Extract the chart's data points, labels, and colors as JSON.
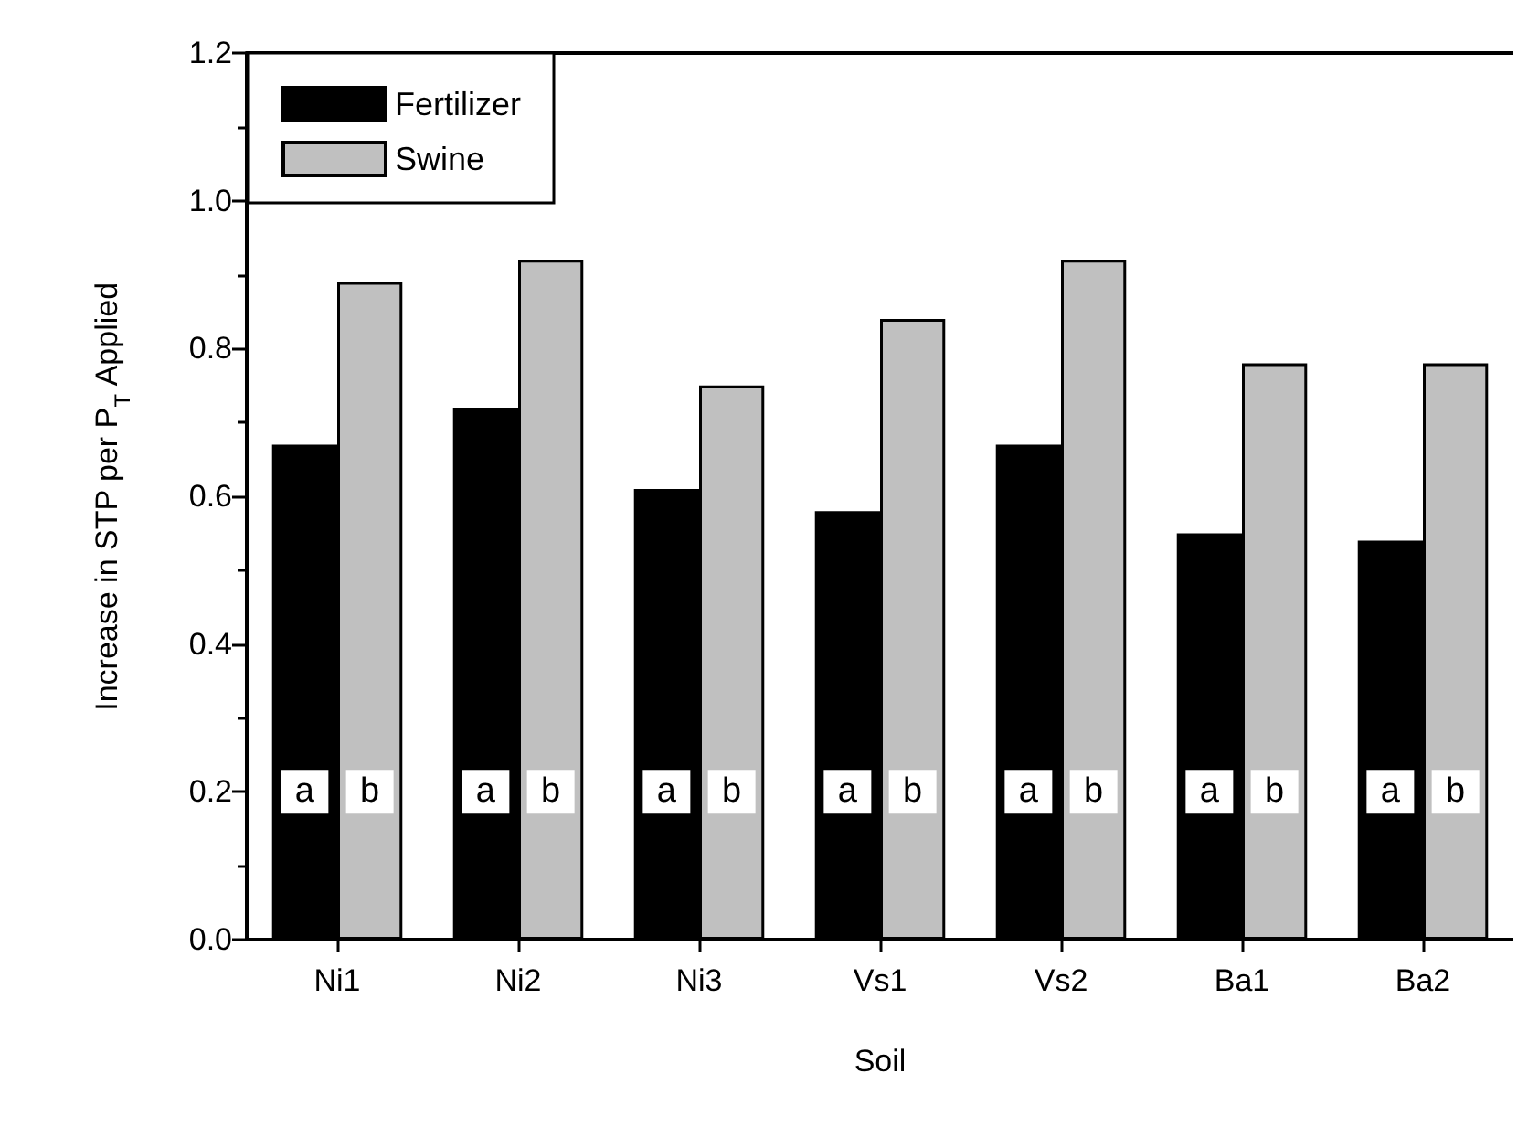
{
  "chart_data": {
    "type": "bar",
    "xlabel": "Soil",
    "ylabel": "Increase in STP per P$_{T}$ Applied",
    "categories": [
      "Ni1",
      "Ni2",
      "Ni3",
      "Vs1",
      "Vs2",
      "Ba1",
      "Ba2"
    ],
    "series": [
      {
        "name": "Fertilizer",
        "color": "#000000",
        "values": [
          0.67,
          0.72,
          0.61,
          0.58,
          0.67,
          0.55,
          0.54
        ]
      },
      {
        "name": "Swine",
        "color": "#c0c0c0",
        "values": [
          0.89,
          0.92,
          0.75,
          0.84,
          0.92,
          0.78,
          0.78
        ]
      }
    ],
    "ylim": [
      0,
      1.2
    ],
    "yticks": [
      {
        "value": 0,
        "label": "0.0"
      },
      {
        "value": 0.2,
        "label": "0.2"
      },
      {
        "value": 0.4,
        "label": "0.4"
      },
      {
        "value": 0.6,
        "label": "0.6"
      },
      {
        "value": 0.8,
        "label": "0.8"
      },
      {
        "value": 1.0,
        "label": "1.0"
      },
      {
        "value": 1.2,
        "label": "1.2"
      }
    ],
    "annotations": [
      {
        "text": "a",
        "x": "Ni1",
        "y": 0.2
      },
      {
        "text": "b",
        "x": "Ni1",
        "y": 0.2
      },
      {
        "text": "a",
        "x": "Ni2",
        "y": 0.2
      },
      {
        "text": "b",
        "x": "Ni2",
        "y": 0.2
      },
      {
        "text": "a",
        "x": "Ni3",
        "y": 0.2
      },
      {
        "text": "b",
        "x": "Ni3",
        "y": 0.2
      },
      {
        "text": "a",
        "x": "Vs1",
        "y": 0.2
      },
      {
        "text": "b",
        "x": "Vs1",
        "y": 0.2
      },
      {
        "text": "a",
        "x": "Vs2",
        "y": 0.2
      },
      {
        "text": "b",
        "x": "Vs2",
        "y": 0.2
      },
      {
        "text": "a",
        "x": "Ba1",
        "y": 0.2
      },
      {
        "text": "b",
        "x": "Ba1",
        "y": 0.2
      },
      {
        "text": "a",
        "x": "Ba2",
        "y": 0.2
      },
      {
        "text": "b",
        "x": "Ba2",
        "y": 0.2
      }
    ],
    "grid": false,
    "legend": "top left"
  }
}
